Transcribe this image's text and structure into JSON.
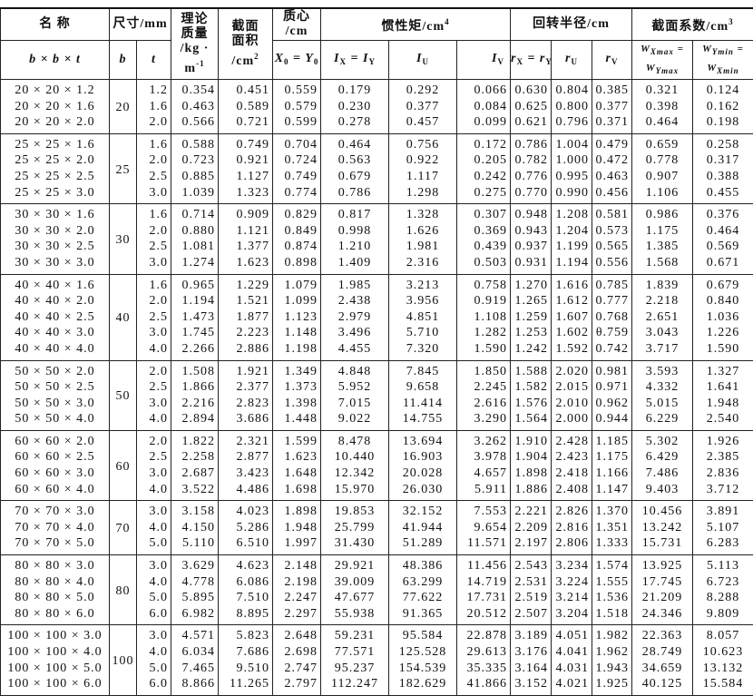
{
  "header": {
    "name": "名  称",
    "size": "尺寸/mm",
    "mass": [
      "理论",
      "质量",
      "/kg ·",
      "m",
      "-1"
    ],
    "area": [
      "截面",
      "面积",
      "/cm",
      "2"
    ],
    "centroid": [
      "质心",
      "/cm"
    ],
    "inertia": [
      "惯性矩/cm",
      "4"
    ],
    "gyration": "回转半径/cm",
    "modulus": [
      "截面系数/cm",
      "3"
    ],
    "name_sub": "b × b × t",
    "b": "b",
    "t": "t",
    "x0": [
      "X",
      "0",
      " = Y",
      "0"
    ],
    "ix": [
      "I",
      "X",
      " = I",
      "Y"
    ],
    "iu": [
      "I",
      "U"
    ],
    "iv": [
      "I",
      "V"
    ],
    "rx": [
      "r",
      "X",
      " = r",
      "Y"
    ],
    "ru": [
      "r",
      "U"
    ],
    "rv": [
      "r",
      "V"
    ],
    "wx": [
      "W",
      "Xmax",
      " =",
      "W",
      "Ymax"
    ],
    "wy": [
      "W",
      "Ymin",
      " =",
      "W",
      "Xmin"
    ]
  },
  "groups": [
    {
      "b": "20",
      "rows": [
        [
          "20 × 20 × 1.2",
          "1.2",
          "0.354",
          "0.451",
          "0.559",
          "0.179",
          "0.292",
          "0.066",
          "0.630",
          "0.804",
          "0.385",
          "0.321",
          "0.124"
        ],
        [
          "20 × 20 × 1.6",
          "1.6",
          "0.463",
          "0.589",
          "0.579",
          "0.230",
          "0.377",
          "0.084",
          "0.625",
          "0.800",
          "0.377",
          "0.398",
          "0.162"
        ],
        [
          "20 × 20 × 2.0",
          "2.0",
          "0.566",
          "0.721",
          "0.599",
          "0.278",
          "0.457",
          "0.099",
          "0.621",
          "0.796",
          "0.371",
          "0.464",
          "0.198"
        ]
      ]
    },
    {
      "b": "25",
      "rows": [
        [
          "25 × 25 × 1.6",
          "1.6",
          "0.588",
          "0.749",
          "0.704",
          "0.464",
          "0.756",
          "0.172",
          "0.786",
          "1.004",
          "0.479",
          "0.659",
          "0.258"
        ],
        [
          "25 × 25 × 2.0",
          "2.0",
          "0.723",
          "0.921",
          "0.724",
          "0.563",
          "0.922",
          "0.205",
          "0.782",
          "1.000",
          "0.472",
          "0.778",
          "0.317"
        ],
        [
          "25 × 25 × 2.5",
          "2.5",
          "0.885",
          "1.127",
          "0.749",
          "0.679",
          "1.117",
          "0.242",
          "0.776",
          "0.995",
          "0.463",
          "0.907",
          "0.388"
        ],
        [
          "25 × 25 × 3.0",
          "3.0",
          "1.039",
          "1.323",
          "0.774",
          "0.786",
          "1.298",
          "0.275",
          "0.770",
          "0.990",
          "0.456",
          "1.106",
          "0.455"
        ]
      ]
    },
    {
      "b": "30",
      "rows": [
        [
          "30 × 30 × 1.6",
          "1.6",
          "0.714",
          "0.909",
          "0.829",
          "0.817",
          "1.328",
          "0.307",
          "0.948",
          "1.208",
          "0.581",
          "0.986",
          "0.376"
        ],
        [
          "30 × 30 × 2.0",
          "2.0",
          "0.880",
          "1.121",
          "0.849",
          "0.998",
          "1.626",
          "0.369",
          "0.943",
          "1.204",
          "0.573",
          "1.175",
          "0.464"
        ],
        [
          "30 × 30 × 2.5",
          "2.5",
          "1.081",
          "1.377",
          "0.874",
          "1.210",
          "1.981",
          "0.439",
          "0.937",
          "1.199",
          "0.565",
          "1.385",
          "0.569"
        ],
        [
          "30 × 30 × 3.0",
          "3.0",
          "1.274",
          "1.623",
          "0.898",
          "1.409",
          "2.316",
          "0.503",
          "0.931",
          "1.194",
          "0.556",
          "1.568",
          "0.671"
        ]
      ]
    },
    {
      "b": "40",
      "rows": [
        [
          "40 × 40 × 1.6",
          "1.6",
          "0.965",
          "1.229",
          "1.079",
          "1.985",
          "3.213",
          "0.758",
          "1.270",
          "1.616",
          "0.785",
          "1.839",
          "0.679"
        ],
        [
          "40 × 40 × 2.0",
          "2.0",
          "1.194",
          "1.521",
          "1.099",
          "2.438",
          "3.956",
          "0.919",
          "1.265",
          "1.612",
          "0.777",
          "2.218",
          "0.840"
        ],
        [
          "40 × 40 × 2.5",
          "2.5",
          "1.473",
          "1.877",
          "1.123",
          "2.979",
          "4.851",
          "1.108",
          "1.259",
          "1.607",
          "0.768",
          "2.651",
          "1.036"
        ],
        [
          "40 × 40 × 3.0",
          "3.0",
          "1.745",
          "2.223",
          "1.148",
          "3.496",
          "5.710",
          "1.282",
          "1.253",
          "1.602",
          "θ.759",
          "3.043",
          "1.226"
        ],
        [
          "40 × 40 × 4.0",
          "4.0",
          "2.266",
          "2.886",
          "1.198",
          "4.455",
          "7.320",
          "1.590",
          "1.242",
          "1.592",
          "0.742",
          "3.717",
          "1.590"
        ]
      ]
    },
    {
      "b": "50",
      "rows": [
        [
          "50 × 50 × 2.0",
          "2.0",
          "1.508",
          "1.921",
          "1.349",
          "4.848",
          "7.845",
          "1.850",
          "1.588",
          "2.020",
          "0.981",
          "3.593",
          "1.327"
        ],
        [
          "50 × 50 × 2.5",
          "2.5",
          "1.866",
          "2.377",
          "1.373",
          "5.952",
          "9.658",
          "2.245",
          "1.582",
          "2.015",
          "0.971",
          "4.332",
          "1.641"
        ],
        [
          "50 × 50 × 3.0",
          "3.0",
          "2.216",
          "2.823",
          "1.398",
          "7.015",
          "11.414",
          "2.616",
          "1.576",
          "2.010",
          "0.962",
          "5.015",
          "1.948"
        ],
        [
          "50 × 50 × 4.0",
          "4.0",
          "2.894",
          "3.686",
          "1.448",
          "9.022",
          "14.755",
          "3.290",
          "1.564",
          "2.000",
          "0.944",
          "6.229",
          "2.540"
        ]
      ]
    },
    {
      "b": "60",
      "rows": [
        [
          "60 × 60 × 2.0",
          "2.0",
          "1.822",
          "2.321",
          "1.599",
          "8.478",
          "13.694",
          "3.262",
          "1.910",
          "2.428",
          "1.185",
          "5.302",
          "1.926"
        ],
        [
          "60 × 60 × 2.5",
          "2.5",
          "2.258",
          "2.877",
          "1.623",
          "10.440",
          "16.903",
          "3.978",
          "1.904",
          "2.423",
          "1.175",
          "6.429",
          "2.385"
        ],
        [
          "60 × 60 × 3.0",
          "3.0",
          "2.687",
          "3.423",
          "1.648",
          "12.342",
          "20.028",
          "4.657",
          "1.898",
          "2.418",
          "1.166",
          "7.486",
          "2.836"
        ],
        [
          "60 × 60 × 4.0",
          "4.0",
          "3.522",
          "4.486",
          "1.698",
          "15.970",
          "26.030",
          "5.911",
          "1.886",
          "2.408",
          "1.147",
          "9.403",
          "3.712"
        ]
      ]
    },
    {
      "b": "70",
      "rows": [
        [
          "70 × 70 × 3.0",
          "3.0",
          "3.158",
          "4.023",
          "1.898",
          "19.853",
          "32.152",
          "7.553",
          "2.221",
          "2.826",
          "1.370",
          "10.456",
          "3.891"
        ],
        [
          "70 × 70 × 4.0",
          "4.0",
          "4.150",
          "5.286",
          "1.948",
          "25.799",
          "41.944",
          "9.654",
          "2.209",
          "2.816",
          "1.351",
          "13.242",
          "5.107"
        ],
        [
          "70 × 70 × 5.0",
          "5.0",
          "5.110",
          "6.510",
          "1.997",
          "31.430",
          "51.289",
          "11.571",
          "2.197",
          "2.806",
          "1.333",
          "15.731",
          "6.283"
        ]
      ]
    },
    {
      "b": "80",
      "rows": [
        [
          "80 × 80 × 3.0",
          "3.0",
          "3.629",
          "4.623",
          "2.148",
          "29.921",
          "48.386",
          "11.456",
          "2.543",
          "3.234",
          "1.574",
          "13.925",
          "5.113"
        ],
        [
          "80 × 80 × 4.0",
          "4.0",
          "4.778",
          "6.086",
          "2.198",
          "39.009",
          "63.299",
          "14.719",
          "2.531",
          "3.224",
          "1.555",
          "17.745",
          "6.723"
        ],
        [
          "80 × 80 × 5.0",
          "5.0",
          "5.895",
          "7.510",
          "2.247",
          "47.677",
          "77.622",
          "17.731",
          "2.519",
          "3.214",
          "1.536",
          "21.209",
          "8.288"
        ],
        [
          "80 × 80 × 6.0",
          "6.0",
          "6.982",
          "8.895",
          "2.297",
          "55.938",
          "91.365",
          "20.512",
          "2.507",
          "3.204",
          "1.518",
          "24.346",
          "9.809"
        ]
      ]
    },
    {
      "b": "100",
      "rows": [
        [
          "100 × 100 × 3.0",
          "3.0",
          "4.571",
          "5.823",
          "2.648",
          "59.231",
          "95.584",
          "22.878",
          "3.189",
          "4.051",
          "1.982",
          "22.363",
          "8.057"
        ],
        [
          "100 × 100 × 4.0",
          "4.0",
          "6.034",
          "7.686",
          "2.698",
          "77.571",
          "125.528",
          "29.613",
          "3.176",
          "4.041",
          "1.962",
          "28.749",
          "10.623"
        ],
        [
          "100 × 100 × 5.0",
          "5.0",
          "7.465",
          "9.510",
          "2.747",
          "95.237",
          "154.539",
          "35.335",
          "3.164",
          "4.031",
          "1.943",
          "34.659",
          "13.132"
        ],
        [
          "100 × 100 × 6.0",
          "6.0",
          "8.866",
          "11.265",
          "2.797",
          "112.247",
          "182.629",
          "41.866",
          "3.152",
          "4.021",
          "1.925",
          "40.125",
          "15.584"
        ]
      ]
    }
  ]
}
